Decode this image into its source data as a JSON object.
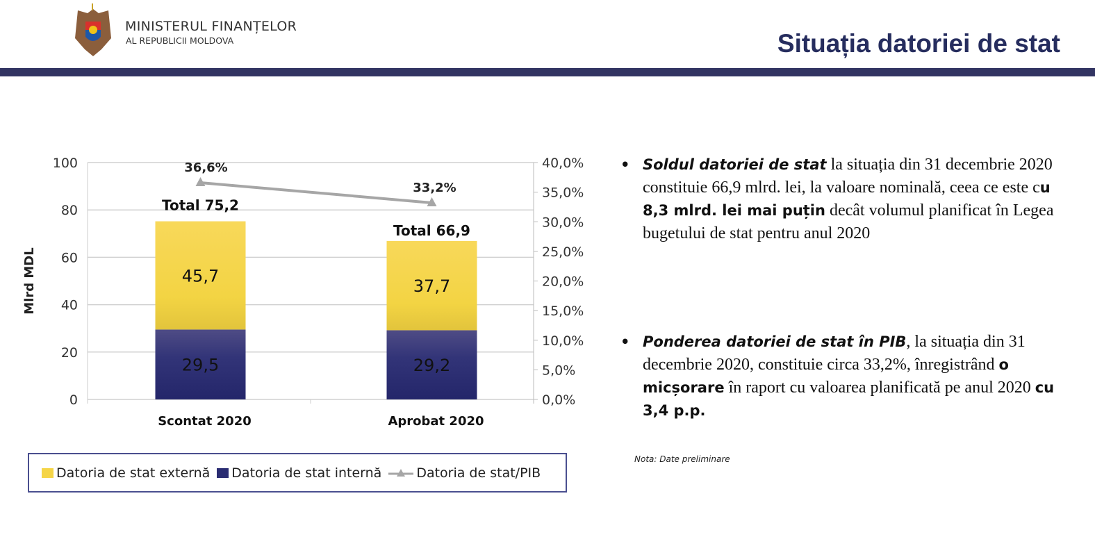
{
  "header": {
    "org_line1": "MINISTERUL FINANȚELOR",
    "org_line2": "AL REPUBLICII MOLDOVA",
    "title": "Situația datoriei de stat"
  },
  "colors": {
    "accent": "#323462",
    "external": "#f5d547",
    "internal": "#2a2c72",
    "ratio": "#a6a6a6"
  },
  "chart_data": {
    "type": "bar",
    "stacked": true,
    "categories": [
      "Scontat 2020",
      "Aprobat 2020"
    ],
    "series": [
      {
        "name": "Datoria de stat internă",
        "values": [
          29.5,
          29.2
        ],
        "labels": [
          "29,5",
          "29,2"
        ]
      },
      {
        "name": "Datoria de stat externă",
        "values": [
          45.7,
          37.7
        ],
        "labels": [
          "45,7",
          "37,7"
        ]
      }
    ],
    "line_series": {
      "name": "Datoria de stat/PIB",
      "axis": "right",
      "values": [
        36.6,
        33.2
      ],
      "labels": [
        "36,6%",
        "33,2%"
      ]
    },
    "totals": [
      "Total 75,2",
      "Total 66,9"
    ],
    "ylabel": "Mlrd MDL",
    "ylim": [
      0,
      100
    ],
    "yticks": [
      "0",
      "20",
      "40",
      "60",
      "80",
      "100"
    ],
    "y2lim": [
      0,
      40
    ],
    "y2ticks": [
      "0,0%",
      "5,0%",
      "10,0%",
      "15,0%",
      "20,0%",
      "25,0%",
      "30,0%",
      "35,0%",
      "40,0%"
    ],
    "grid": true,
    "legend_position": "bottom",
    "legend": [
      "Datoria de stat externă",
      "Datoria de stat internă",
      "Datoria de stat/PIB"
    ]
  },
  "text": {
    "p1": {
      "bold_italic": "Soldul datoriei de stat",
      "t1": " la situația din 31 decembrie 2020 constituie 66,9 mlrd. lei, la valoare nominală, ceea ce este c",
      "bold": "u 8,3 mlrd. lei mai puțin",
      "t2": " decât volumul planificat în Legea bugetului de stat pentru anul 2020"
    },
    "p2": {
      "bold_italic": "Ponderea datoriei de stat în PIB",
      "t1": ", la situația din 31 decembrie 2020, constituie circa 33,2%, înregistrând ",
      "bold": "o micșorare",
      "t2": " în raport cu valoarea planificată pe anul 2020 ",
      "bold2": "cu 3,4 p.p."
    },
    "bullet": "•",
    "nota": "Nota: Date preliminare"
  }
}
